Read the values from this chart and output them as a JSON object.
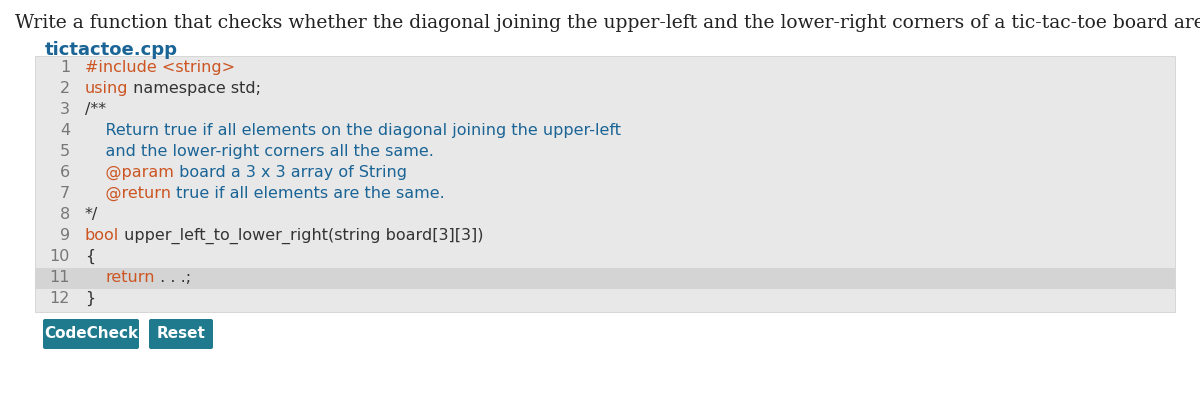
{
  "bg_color": "#ffffff",
  "description": "Write a function that checks whether the diagonal joining the upper-left and the lower-right corners of a tic-tac-toe board are all the same.",
  "filename": "tictactoe.cpp",
  "filename_color": "#1a6496",
  "code_bg_color": "#e8e8e8",
  "line_bg_highlight": "#d4d4d4",
  "line_number_color": "#777777",
  "lines": [
    {
      "num": "1",
      "highlight": false,
      "segments": [
        {
          "text": "#include <string>",
          "color": "#cc5522",
          "mono": true
        }
      ]
    },
    {
      "num": "2",
      "highlight": false,
      "segments": [
        {
          "text": "using",
          "color": "#cc5522",
          "mono": true
        },
        {
          "text": " namespace std;",
          "color": "#333333",
          "mono": true
        }
      ]
    },
    {
      "num": "3",
      "highlight": false,
      "segments": [
        {
          "text": "/**",
          "color": "#333333",
          "mono": true
        }
      ]
    },
    {
      "num": "4",
      "highlight": false,
      "segments": [
        {
          "text": "    Return true if all elements on the diagonal joining the upper-left",
          "color": "#1a6496",
          "mono": true
        }
      ]
    },
    {
      "num": "5",
      "highlight": false,
      "segments": [
        {
          "text": "    and the lower-right corners all the same.",
          "color": "#1a6496",
          "mono": true
        }
      ]
    },
    {
      "num": "6",
      "highlight": false,
      "segments": [
        {
          "text": "    @param",
          "color": "#cc5522",
          "mono": true
        },
        {
          "text": " board a 3 x 3 array of String",
          "color": "#1a6496",
          "mono": true
        }
      ]
    },
    {
      "num": "7",
      "highlight": false,
      "segments": [
        {
          "text": "    @return",
          "color": "#cc5522",
          "mono": true
        },
        {
          "text": " true if all elements are the same.",
          "color": "#1a6496",
          "mono": true
        }
      ]
    },
    {
      "num": "8",
      "highlight": false,
      "segments": [
        {
          "text": "*/",
          "color": "#333333",
          "mono": true
        }
      ]
    },
    {
      "num": "9",
      "highlight": false,
      "segments": [
        {
          "text": "bool",
          "color": "#cc5522",
          "mono": true
        },
        {
          "text": " upper_left_to_lower_right(string board[3][3])",
          "color": "#333333",
          "mono": true
        }
      ]
    },
    {
      "num": "10",
      "highlight": false,
      "segments": [
        {
          "text": "{",
          "color": "#333333",
          "mono": true
        }
      ]
    },
    {
      "num": "11",
      "highlight": true,
      "segments": [
        {
          "text": "    ",
          "color": "#333333",
          "mono": true
        },
        {
          "text": "return",
          "color": "#cc5522",
          "mono": true
        },
        {
          "text": " . . .;",
          "color": "#333333",
          "mono": true
        }
      ]
    },
    {
      "num": "12",
      "highlight": false,
      "segments": [
        {
          "text": "}",
          "color": "#333333",
          "mono": true
        }
      ]
    }
  ],
  "button_codecheck": {
    "text": "CodeCheck",
    "bg": "#1e7a8c",
    "fg": "#ffffff"
  },
  "button_reset": {
    "text": "Reset",
    "bg": "#1e7a8c",
    "fg": "#ffffff"
  },
  "desc_fontsize": 13.5,
  "filename_fontsize": 13,
  "code_fontsize": 11.5,
  "linenum_fontsize": 11.5,
  "button_fontsize": 11
}
